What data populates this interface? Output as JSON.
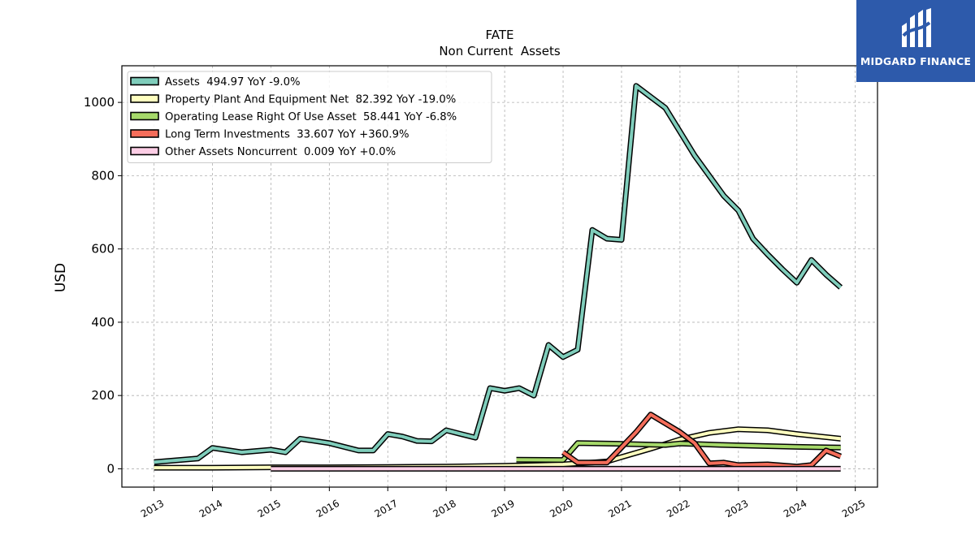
{
  "logo": {
    "text": "MIDGARD FINANCE"
  },
  "chart_data": {
    "type": "line",
    "title": "FATE",
    "subtitle": "Non Current  Assets",
    "ylabel": "USD",
    "xlabel": "",
    "xlim": [
      2012.45,
      2025.38
    ],
    "ylim": [
      -50,
      1100
    ],
    "x_ticks": [
      "2013",
      "2014",
      "2015",
      "2016",
      "2017",
      "2018",
      "2019",
      "2020",
      "2021",
      "2022",
      "2023",
      "2024",
      "2025"
    ],
    "y_ticks": [
      "0",
      "200",
      "400",
      "600",
      "800",
      "1000"
    ],
    "grid": true,
    "legend_position": "top-left",
    "series": [
      {
        "name": "Assets  494.97 YoY -9.0%",
        "color": "#7fcdbb",
        "points": [
          [
            2013.0,
            18
          ],
          [
            2013.75,
            28
          ],
          [
            2014.0,
            57
          ],
          [
            2014.5,
            45
          ],
          [
            2015.0,
            52
          ],
          [
            2015.25,
            45
          ],
          [
            2015.5,
            82
          ],
          [
            2016.0,
            70
          ],
          [
            2016.5,
            50
          ],
          [
            2016.75,
            50
          ],
          [
            2017.0,
            95
          ],
          [
            2017.25,
            88
          ],
          [
            2017.5,
            76
          ],
          [
            2017.75,
            75
          ],
          [
            2018.0,
            105
          ],
          [
            2018.25,
            95
          ],
          [
            2018.5,
            85
          ],
          [
            2018.75,
            220
          ],
          [
            2019.0,
            213
          ],
          [
            2019.25,
            220
          ],
          [
            2019.5,
            200
          ],
          [
            2019.75,
            338
          ],
          [
            2020.0,
            305
          ],
          [
            2020.25,
            325
          ],
          [
            2020.5,
            652
          ],
          [
            2020.75,
            628
          ],
          [
            2021.0,
            625
          ],
          [
            2021.25,
            1045
          ],
          [
            2021.5,
            1015
          ],
          [
            2021.75,
            985
          ],
          [
            2022.0,
            920
          ],
          [
            2022.25,
            855
          ],
          [
            2022.5,
            800
          ],
          [
            2022.75,
            745
          ],
          [
            2023.0,
            705
          ],
          [
            2023.25,
            628
          ],
          [
            2023.5,
            585
          ],
          [
            2023.75,
            545
          ],
          [
            2024.0,
            508
          ],
          [
            2024.25,
            570
          ],
          [
            2024.5,
            530
          ],
          [
            2024.75,
            495
          ]
        ]
      },
      {
        "name": "Property Plant And Equipment Net  82.392 YoY -19.0%",
        "color": "#ffffbf",
        "points": [
          [
            2013.0,
            3
          ],
          [
            2014.0,
            3
          ],
          [
            2015.0,
            4
          ],
          [
            2016.0,
            4
          ],
          [
            2017.0,
            5
          ],
          [
            2018.0,
            6
          ],
          [
            2019.0,
            8
          ],
          [
            2020.0,
            12
          ],
          [
            2020.5,
            17
          ],
          [
            2020.75,
            20
          ],
          [
            2021.0,
            32
          ],
          [
            2021.5,
            55
          ],
          [
            2022.0,
            80
          ],
          [
            2022.5,
            98
          ],
          [
            2023.0,
            108
          ],
          [
            2023.5,
            105
          ],
          [
            2024.0,
            95
          ],
          [
            2024.75,
            82
          ]
        ]
      },
      {
        "name": "Operating Lease Right Of Use Asset  58.441 YoY -6.8%",
        "color": "#a6d96a",
        "points": [
          [
            2019.2,
            25
          ],
          [
            2020.0,
            24
          ],
          [
            2020.25,
            70
          ],
          [
            2021.0,
            68
          ],
          [
            2021.75,
            65
          ],
          [
            2022.0,
            69
          ],
          [
            2022.75,
            65
          ],
          [
            2023.5,
            62
          ],
          [
            2024.0,
            60
          ],
          [
            2024.75,
            58
          ]
        ]
      },
      {
        "name": "Long Term Investments  33.607 YoY +360.9%",
        "color": "#f46d5a",
        "points": [
          [
            2020.0,
            45
          ],
          [
            2020.25,
            17
          ],
          [
            2020.75,
            17
          ],
          [
            2021.25,
            100
          ],
          [
            2021.5,
            148
          ],
          [
            2022.0,
            100
          ],
          [
            2022.25,
            70
          ],
          [
            2022.5,
            15
          ],
          [
            2022.75,
            17
          ],
          [
            2023.0,
            10
          ],
          [
            2023.5,
            12
          ],
          [
            2024.0,
            6
          ],
          [
            2024.25,
            10
          ],
          [
            2024.5,
            50
          ],
          [
            2024.75,
            34
          ]
        ]
      },
      {
        "name": "Other Assets Noncurrent  0.009 YoY +0.0%",
        "color": "#fccde5",
        "points": [
          [
            2015.0,
            0
          ],
          [
            2024.75,
            0
          ]
        ]
      }
    ]
  }
}
